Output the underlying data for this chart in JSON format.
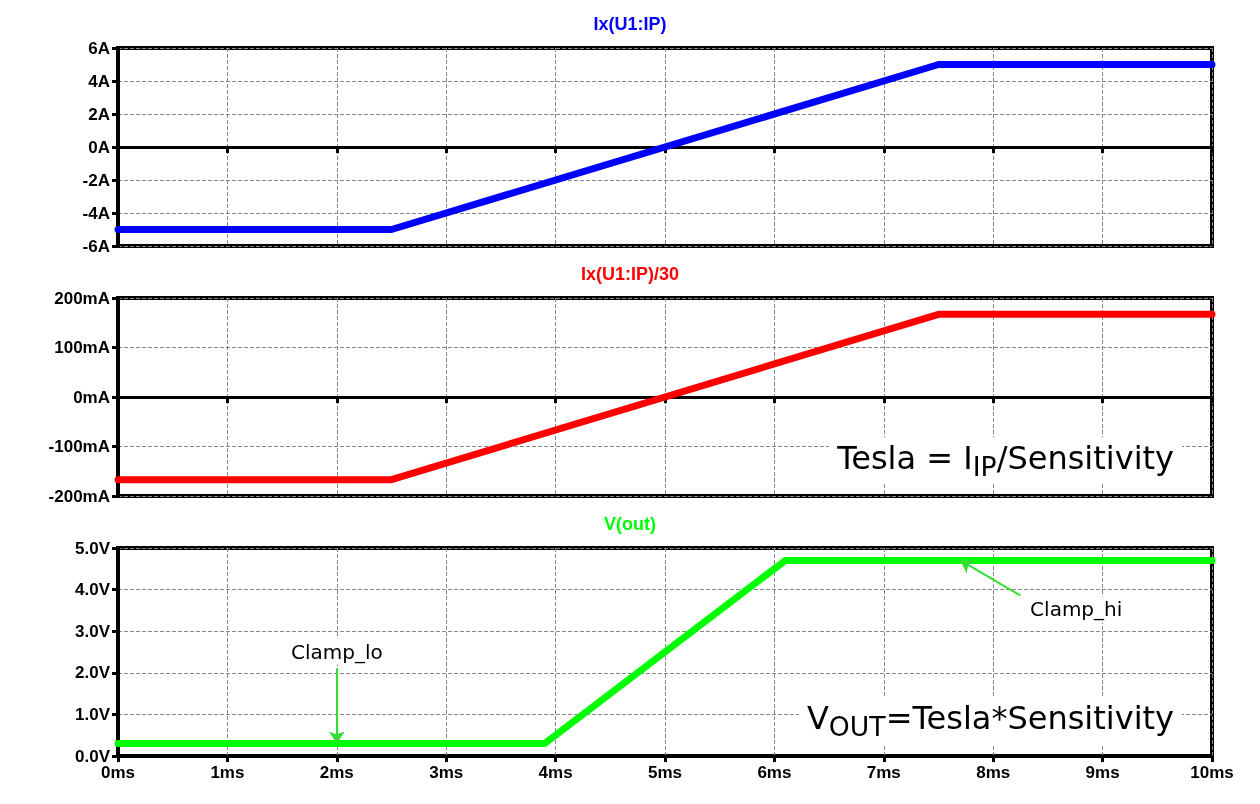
{
  "chart_data": [
    {
      "type": "line",
      "title": "Ix(U1:IP)",
      "x": [
        0,
        2.5,
        7.5,
        10
      ],
      "series": [
        {
          "color": "#0000ff",
          "values": [
            -5,
            -5,
            5,
            5
          ]
        }
      ],
      "xlim": [
        0,
        10
      ],
      "xticks": [
        0,
        1,
        2,
        3,
        4,
        5,
        6,
        7,
        8,
        9,
        10
      ],
      "ylim": [
        -6,
        6
      ],
      "yticks": [
        {
          "value": -6,
          "label": "-6A"
        },
        {
          "value": -4,
          "label": "-4A"
        },
        {
          "value": -2,
          "label": "-2A"
        },
        {
          "value": 0,
          "label": "0A"
        },
        {
          "value": 2,
          "label": "2A"
        },
        {
          "value": 4,
          "label": "4A"
        },
        {
          "value": 6,
          "label": "6A"
        }
      ],
      "grid": true,
      "tick_labels": "y"
    },
    {
      "type": "line",
      "title": "Ix(U1:IP)/30",
      "x": [
        0,
        2.5,
        7.5,
        10
      ],
      "series": [
        {
          "color": "#ff0000",
          "values": [
            -167,
            -167,
            167,
            167
          ]
        }
      ],
      "xlim": [
        0,
        10
      ],
      "xticks": [
        0,
        1,
        2,
        3,
        4,
        5,
        6,
        7,
        8,
        9,
        10
      ],
      "ylim": [
        -200,
        200
      ],
      "yticks": [
        {
          "value": -200,
          "label": "-200mA"
        },
        {
          "value": -100,
          "label": "-100mA"
        },
        {
          "value": 0,
          "label": "0mA"
        },
        {
          "value": 100,
          "label": "100mA"
        },
        {
          "value": 200,
          "label": "200mA"
        }
      ],
      "grid": true,
      "tick_labels": "y",
      "annotations": [
        "Tesla = I$_{IP}$/Sensitivity"
      ]
    },
    {
      "type": "line",
      "title": "V(out)",
      "x": [
        0,
        3.9,
        6.1,
        10
      ],
      "series": [
        {
          "color": "#00ff00",
          "values": [
            0.3,
            0.3,
            4.7,
            4.7
          ]
        }
      ],
      "xlim": [
        0,
        10
      ],
      "xticks": [
        {
          "value": 0,
          "label": "0ms"
        },
        {
          "value": 1,
          "label": "1ms"
        },
        {
          "value": 2,
          "label": "2ms"
        },
        {
          "value": 3,
          "label": "3ms"
        },
        {
          "value": 4,
          "label": "4ms"
        },
        {
          "value": 5,
          "label": "5ms"
        },
        {
          "value": 6,
          "label": "6ms"
        },
        {
          "value": 7,
          "label": "7ms"
        },
        {
          "value": 8,
          "label": "8ms"
        },
        {
          "value": 9,
          "label": "9ms"
        },
        {
          "value": 10,
          "label": "10ms"
        }
      ],
      "ylim": [
        0,
        5
      ],
      "yticks": [
        {
          "value": 0,
          "label": "0.0V"
        },
        {
          "value": 1,
          "label": "1.0V"
        },
        {
          "value": 2,
          "label": "2.0V"
        },
        {
          "value": 3,
          "label": "3.0V"
        },
        {
          "value": 4,
          "label": "4.0V"
        },
        {
          "value": 5,
          "label": "5.0V"
        }
      ],
      "grid": true,
      "annotations": [
        {
          "text": "Clamp_lo",
          "x": 2,
          "y": 0.3
        },
        {
          "text": "Clamp_hi",
          "x": 7.7,
          "y": 4.7
        },
        "V$_{OUT}$=Tesla*Sensitivity"
      ]
    }
  ]
}
